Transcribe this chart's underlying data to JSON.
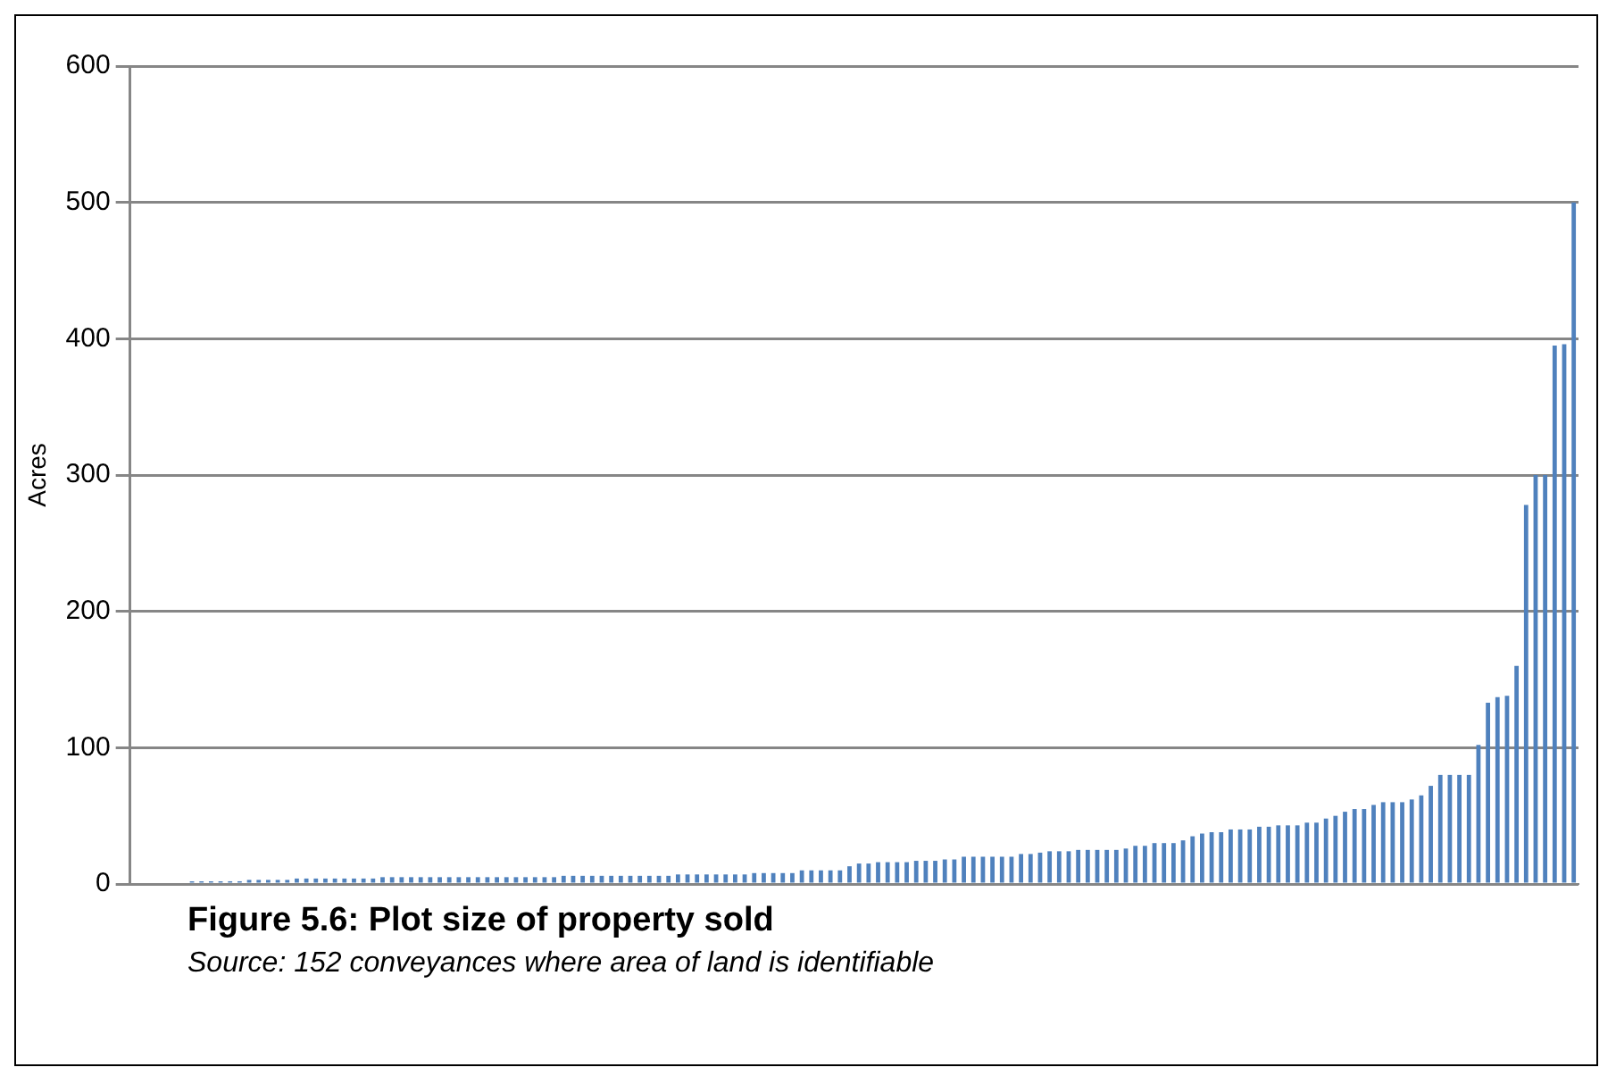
{
  "chart_data": {
    "type": "bar",
    "title": "Figure 5.6: Plot size of property sold",
    "annotations": [
      "Source: 152 conveyances where area of land is identifiable"
    ],
    "ylabel": "Acres",
    "categories": [
      null,
      null,
      null,
      null,
      null,
      null,
      null,
      null,
      null,
      null,
      null,
      null,
      null,
      null,
      null,
      null,
      null,
      null,
      null,
      null,
      null,
      null,
      null,
      null,
      null,
      null,
      null,
      null,
      null,
      null,
      null,
      null,
      null,
      null,
      null,
      null,
      null,
      null,
      null,
      null,
      null,
      null,
      null,
      null,
      null,
      null,
      null,
      null,
      null,
      null,
      null,
      null,
      null,
      null,
      null,
      null,
      null,
      null,
      null,
      null,
      null,
      null,
      null,
      null,
      null,
      null,
      null,
      null,
      null,
      null,
      null,
      null,
      null,
      null,
      null,
      null,
      null,
      null,
      null,
      null,
      null,
      null,
      null,
      null,
      null,
      null,
      null,
      null,
      null,
      null,
      null,
      null,
      null,
      null,
      null,
      null,
      null,
      null,
      null,
      null,
      null,
      null,
      null,
      null,
      null,
      null,
      null,
      null,
      null,
      null,
      null,
      null,
      null,
      null,
      null,
      null,
      null,
      null,
      null,
      null,
      null,
      null,
      null,
      null,
      null,
      null,
      null,
      null,
      null,
      null,
      null,
      null,
      null,
      null,
      null,
      null,
      null,
      null,
      null,
      null,
      null,
      null,
      null,
      null,
      null,
      null,
      null,
      null,
      null,
      null,
      null,
      null
    ],
    "values": [
      1,
      1,
      1,
      1,
      1,
      1,
      2,
      2,
      2,
      2,
      2,
      2,
      3,
      3,
      3,
      3,
      3,
      4,
      4,
      4,
      4,
      4,
      4,
      4,
      4,
      4,
      5,
      5,
      5,
      5,
      5,
      5,
      5,
      5,
      5,
      5,
      5,
      5,
      5,
      5,
      5,
      5,
      5,
      5,
      5,
      6,
      6,
      6,
      6,
      6,
      6,
      6,
      6,
      6,
      6,
      6,
      6,
      7,
      7,
      7,
      7,
      7,
      7,
      7,
      7,
      8,
      8,
      8,
      8,
      8,
      10,
      10,
      10,
      10,
      10,
      13,
      15,
      15,
      16,
      16,
      16,
      16,
      17,
      17,
      17,
      18,
      18,
      20,
      20,
      20,
      20,
      20,
      20,
      22,
      22,
      23,
      24,
      24,
      24,
      25,
      25,
      25,
      25,
      25,
      26,
      28,
      28,
      30,
      30,
      30,
      32,
      35,
      37,
      38,
      38,
      40,
      40,
      40,
      42,
      42,
      43,
      43,
      43,
      45,
      45,
      48,
      50,
      53,
      55,
      55,
      58,
      60,
      60,
      60,
      62,
      65,
      72,
      80,
      80,
      80,
      80,
      102,
      133,
      137,
      138,
      160,
      278,
      300,
      300,
      395,
      396,
      500
    ],
    "color": "#4f81bd",
    "ylim": [
      0,
      600
    ],
    "yticks": [
      0,
      100,
      200,
      300,
      400,
      500,
      600
    ],
    "grid": "y"
  }
}
